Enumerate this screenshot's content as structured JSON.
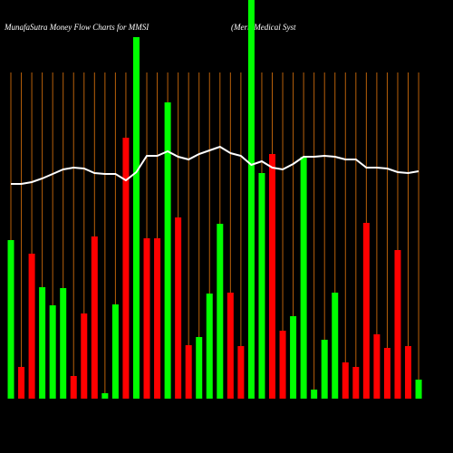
{
  "chart_data": {
    "type": "bar",
    "title": "MunafaSutra  Money Flow  Charts for MMSI",
    "subtitle": "(Merit Medical Syst",
    "categories": [
      null,
      null,
      null,
      null,
      null,
      null,
      null,
      null,
      null,
      null,
      null,
      null,
      null,
      null,
      null,
      null,
      null,
      null,
      null,
      null,
      null,
      null,
      null,
      null,
      null,
      null,
      null,
      null,
      null,
      null,
      null,
      null,
      null,
      null,
      null,
      null,
      null,
      null,
      null,
      null
    ],
    "series": [
      {
        "type": "bar",
        "values": [
          175,
          35,
          160,
          123,
          103,
          122,
          25,
          94,
          179,
          6,
          104,
          288,
          399,
          177,
          177,
          327,
          200,
          59,
          68,
          116,
          193,
          117,
          58,
          440,
          249,
          270,
          75,
          91,
          267,
          10,
          65,
          117,
          40,
          35,
          194,
          71,
          56,
          164,
          58,
          21
        ],
        "colors": [
          "#00ff00",
          "#ff0000",
          "#ff0000",
          "#00ff00",
          "#00ff00",
          "#00ff00",
          "#ff0000",
          "#ff0000",
          "#ff0000",
          "#00ff00",
          "#00ff00",
          "#ff0000",
          "#00ff00",
          "#ff0000",
          "#ff0000",
          "#00ff00",
          "#ff0000",
          "#ff0000",
          "#00ff00",
          "#00ff00",
          "#00ff00",
          "#ff0000",
          "#ff0000",
          "#00ff00",
          "#00ff00",
          "#ff0000",
          "#ff0000",
          "#00ff00",
          "#00ff00",
          "#00ff00",
          "#00ff00",
          "#00ff00",
          "#ff0000",
          "#ff0000",
          "#ff0000",
          "#ff0000",
          "#ff0000",
          "#ff0000",
          "#ff0000",
          "#00ff00"
        ]
      },
      {
        "type": "line",
        "color": "#ffffff",
        "values": [
          237,
          237,
          239,
          243,
          248,
          253,
          255,
          254,
          249,
          248,
          248,
          241,
          250,
          268,
          268,
          273,
          267,
          264,
          270,
          274,
          278,
          271,
          268,
          258,
          262,
          255,
          253,
          259,
          267,
          267,
          268,
          267,
          264,
          264,
          255,
          255,
          254,
          250,
          249,
          251
        ]
      }
    ],
    "ylim": [
      0,
      440
    ],
    "grid_color": "#b8600a"
  }
}
